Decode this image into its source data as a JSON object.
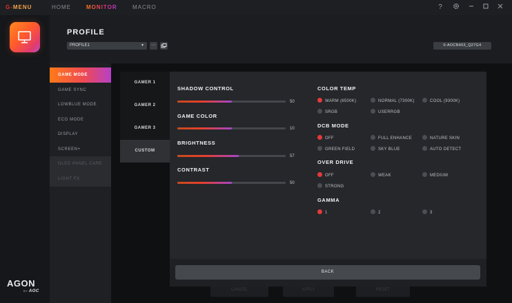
{
  "topbar": {
    "brand_g": "G-",
    "brand_menu": "MENU",
    "nav": [
      {
        "label": "HOME",
        "active": false
      },
      {
        "label": "MONITOR",
        "active": true
      },
      {
        "label": "MACRO",
        "active": false
      }
    ],
    "help": "?",
    "settings_icon": "gear-icon"
  },
  "brand": {
    "agon": "AGON",
    "by": "BY",
    "aoc": "AOC"
  },
  "header": {
    "title": "PROFILE",
    "profile_value": "PROFILE1",
    "more": "···",
    "model": "0-AOCB403_Q27G4"
  },
  "submenu": [
    {
      "label": "GAME MODE",
      "state": "active"
    },
    {
      "label": "GAME SYNC",
      "state": "normal"
    },
    {
      "label": "LOWBLUE MODE",
      "state": "normal"
    },
    {
      "label": "ECO MODE",
      "state": "normal"
    },
    {
      "label": "DISPLAY",
      "state": "normal"
    },
    {
      "label": "SCREEN+",
      "state": "normal"
    },
    {
      "label": "OLED PANEL CARE",
      "state": "disabled"
    },
    {
      "label": "LIGHT FX",
      "state": "disabled"
    }
  ],
  "background_buttons": [
    "CANCEL",
    "APPLY",
    "RESET"
  ],
  "modal": {
    "tabs": [
      {
        "label": "GAMER 1",
        "active": false
      },
      {
        "label": "GAMER 2",
        "active": false
      },
      {
        "label": "GAMER 3",
        "active": false
      },
      {
        "label": "CUSTOM",
        "active": true
      }
    ],
    "sliders": [
      {
        "label": "SHADOW CONTROL",
        "value": 50,
        "max": 100
      },
      {
        "label": "GAME COLOR",
        "value": 10,
        "max": 20
      },
      {
        "label": "BRIGHTNESS",
        "value": 57,
        "max": 100
      },
      {
        "label": "CONTRAST",
        "value": 50,
        "max": 100
      }
    ],
    "color_temp": {
      "label": "COLOR TEMP",
      "options": [
        "WARM (6500K)",
        "NORMAL (7300K)",
        "COOL (9300K)",
        "SRGB",
        "USERRGB"
      ],
      "selected": "WARM (6500K)"
    },
    "dcb_mode": {
      "label": "DCB MODE",
      "options": [
        "OFF",
        "FULL ENHANCE",
        "NATURE SKIN",
        "GREEN FIELD",
        "SKY BLUE",
        "AUTO DETECT"
      ],
      "selected": "OFF"
    },
    "over_drive": {
      "label": "OVER DRIVE",
      "options": [
        "OFF",
        "WEAK",
        "MEDIUM",
        "STRONG"
      ],
      "selected": "OFF"
    },
    "gamma": {
      "label": "GAMMA",
      "options": [
        "1",
        "2",
        "3"
      ],
      "selected": "1"
    },
    "back_label": "BACK"
  },
  "colors": {
    "accent_orange": "#ff7a18",
    "accent_red": "#e53a3a",
    "accent_purple": "#b640c8"
  }
}
